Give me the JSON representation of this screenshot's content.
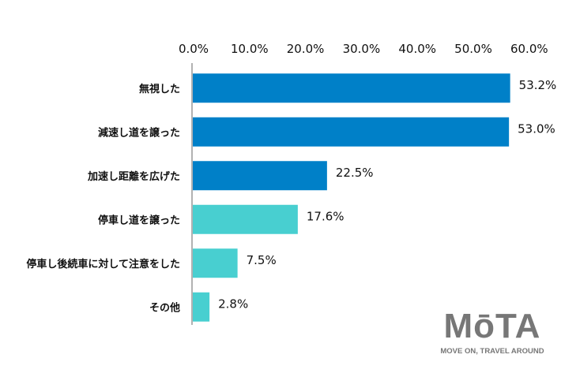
{
  "chart_data": {
    "type": "bar",
    "orientation": "horizontal",
    "categories": [
      "無視した",
      "減速し道を譲った",
      "加速し距離を広げた",
      "停車し道を譲った",
      "停車し後続車に対して注意をした",
      "その他"
    ],
    "values": [
      53.2,
      53.0,
      22.5,
      17.6,
      7.5,
      2.8
    ],
    "data_labels": [
      "53.2%",
      "53.0%",
      "22.5%",
      "17.6%",
      "7.5%",
      "2.8%"
    ],
    "bar_colors": [
      "#0080c8",
      "#0080c8",
      "#0080c8",
      "#48cfd0",
      "#48cfd0",
      "#48cfd0"
    ],
    "xlim": [
      0,
      60
    ],
    "x_ticks": [
      "0.0%",
      "10.0%",
      "20.0%",
      "30.0%",
      "40.0%",
      "50.0%",
      "60.0%"
    ],
    "x_axis_position": "top",
    "grid": false,
    "title": "",
    "xlabel": "",
    "ylabel": ""
  },
  "logo": {
    "text": "MōTA",
    "tagline": "MOVE ON, TRAVEL AROUND"
  }
}
